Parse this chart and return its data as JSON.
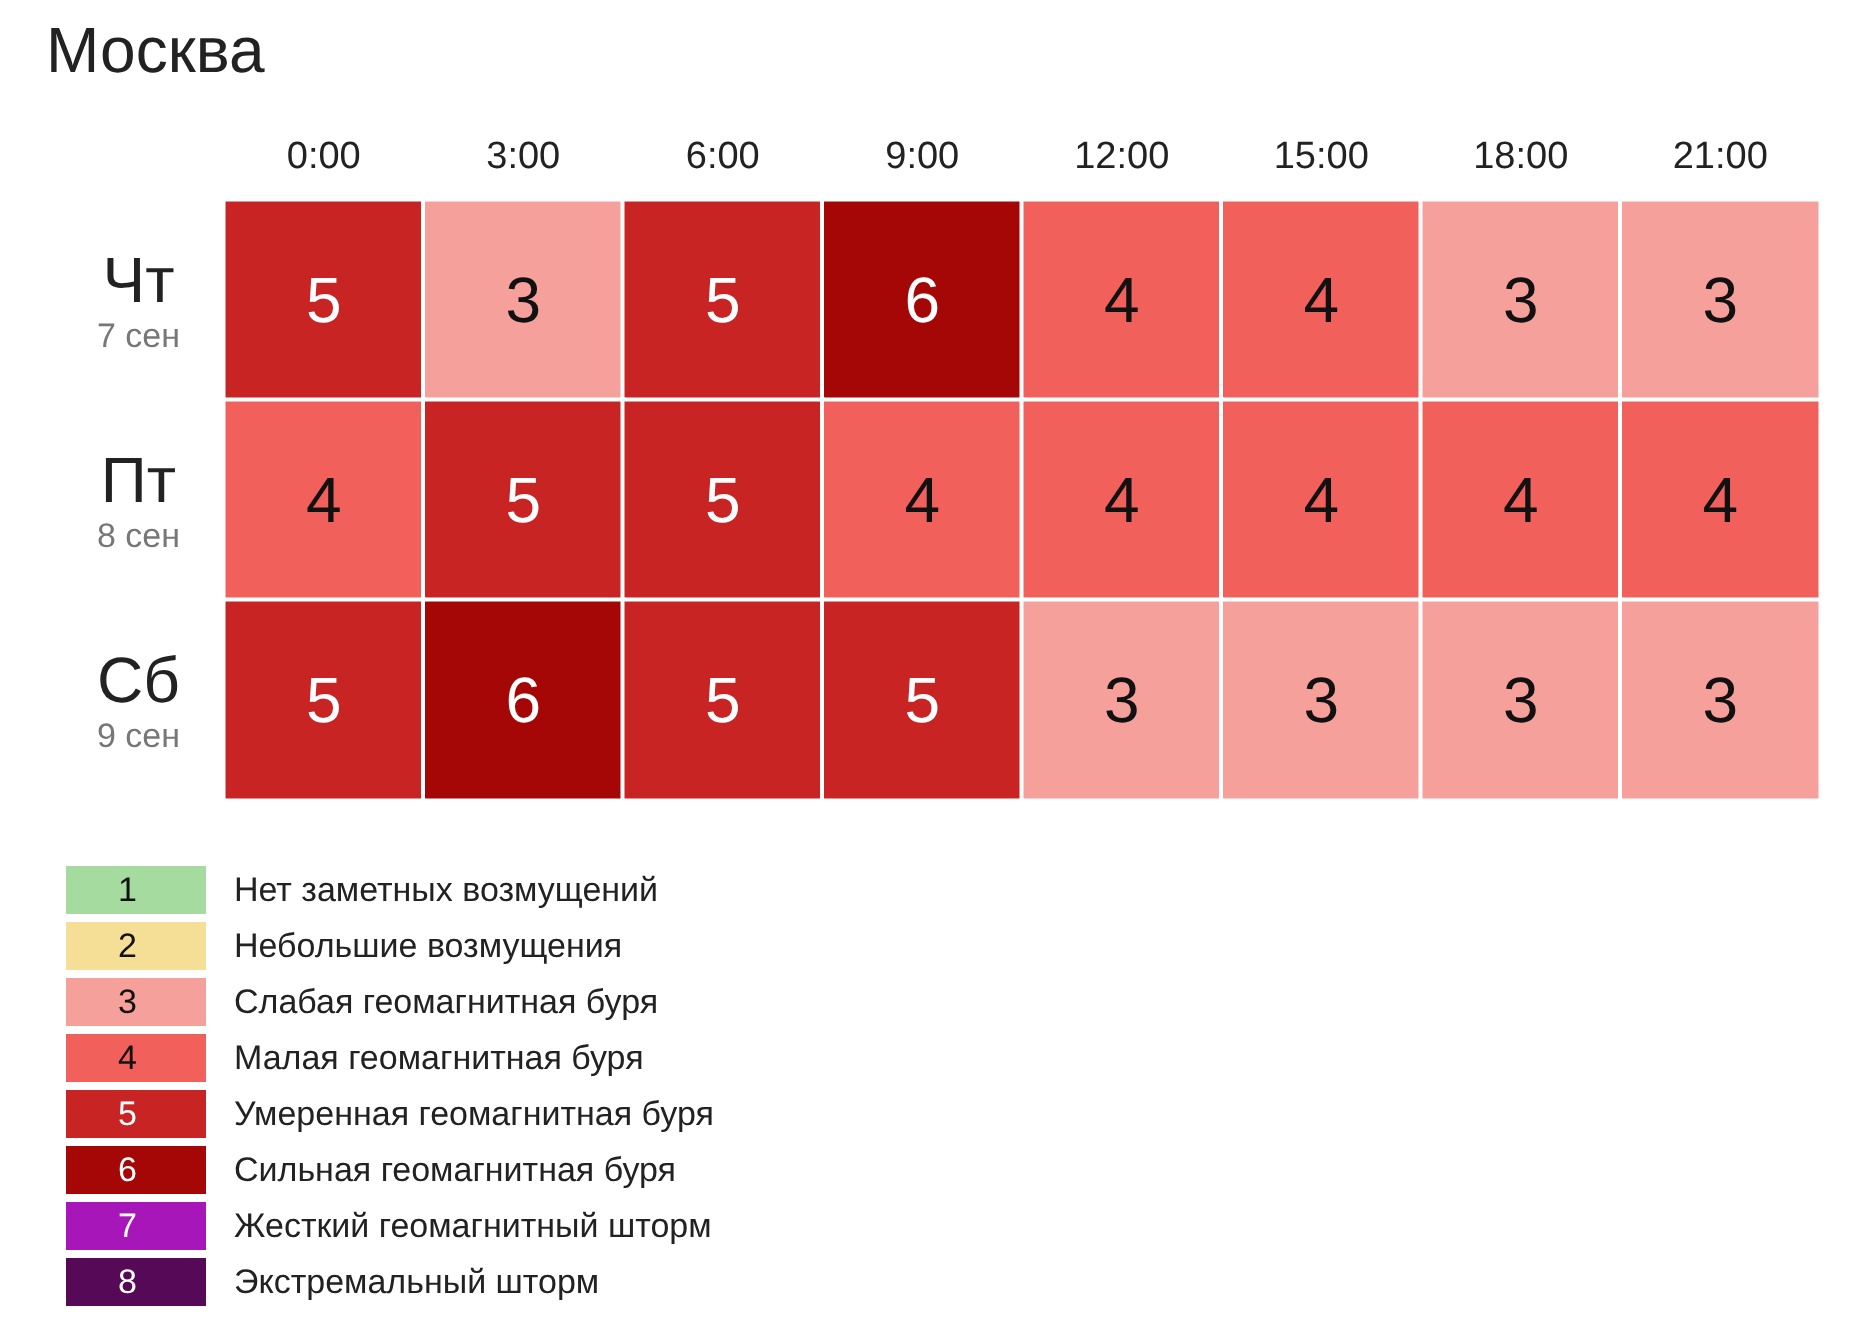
{
  "chart_data": {
    "type": "heatmap",
    "title": "Москва",
    "categories": [
      "0:00",
      "3:00",
      "6:00",
      "9:00",
      "12:00",
      "15:00",
      "18:00",
      "21:00"
    ],
    "y_categories": [
      "Чт\n7 сен",
      "Пт\n8 сен",
      "Сб\n9 сен"
    ],
    "cells": [
      [
        5,
        3,
        5,
        6,
        4,
        4,
        3,
        3
      ],
      [
        4,
        5,
        5,
        4,
        4,
        4,
        4,
        4
      ],
      [
        5,
        6,
        5,
        5,
        3,
        3,
        3,
        3
      ]
    ],
    "cticks": [
      1,
      2,
      3,
      4,
      5,
      6,
      7,
      8
    ],
    "colors": [
      "#a6dba0",
      "#f5df96",
      "#f6a09c",
      "#f2605c",
      "#c82424",
      "#a50606",
      "#a616b8",
      "#560956"
    ],
    "annotations": [
      "Нет заметных возмущений",
      "Небольшие возмущения",
      "Слабая геомагнитная буря",
      "Малая геомагнитная буря",
      "Умеренная геомагнитная буря",
      "Сильная геомагнитная буря",
      "Жесткий геомагнитный шторм",
      "Экстремальный шторм"
    ],
    "data_labels": true
  }
}
